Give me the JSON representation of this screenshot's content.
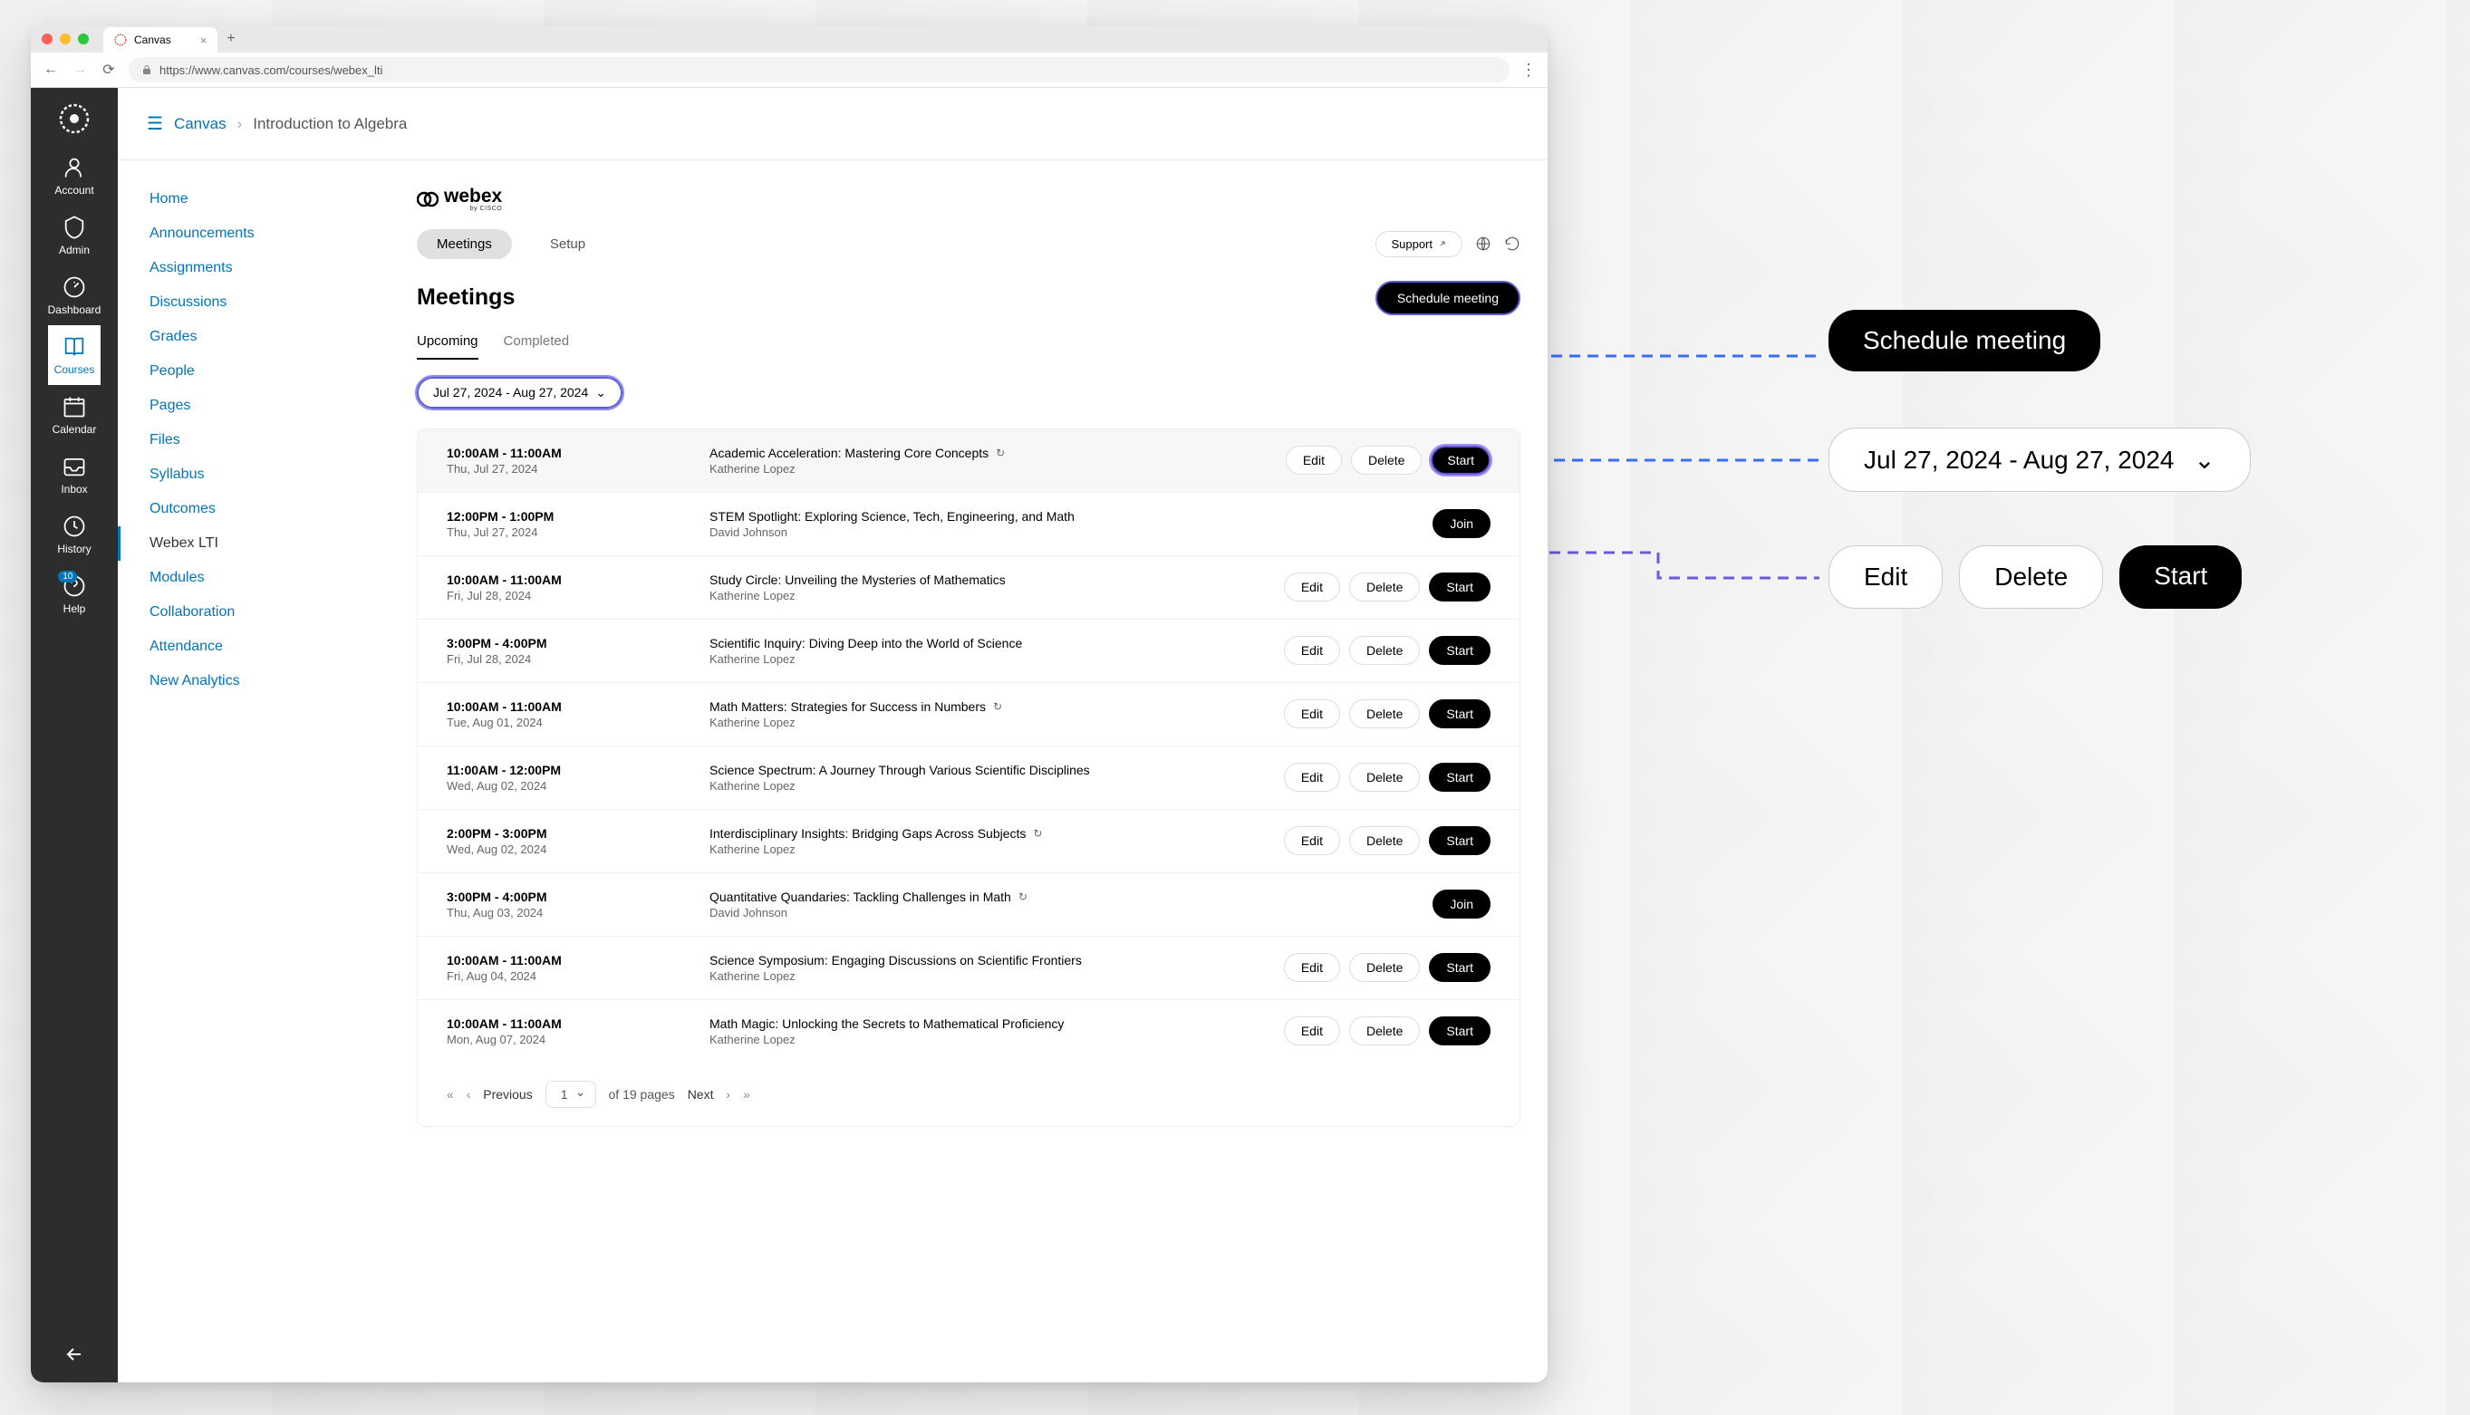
{
  "browser": {
    "tab_title": "Canvas",
    "url": "https://www.canvas.com/courses/webex_lti"
  },
  "global_nav": {
    "items": [
      {
        "label": "Account",
        "icon": "account"
      },
      {
        "label": "Admin",
        "icon": "admin"
      },
      {
        "label": "Dashboard",
        "icon": "dashboard"
      },
      {
        "label": "Courses",
        "icon": "courses",
        "active": true
      },
      {
        "label": "Calendar",
        "icon": "calendar"
      },
      {
        "label": "Inbox",
        "icon": "inbox"
      },
      {
        "label": "History",
        "icon": "history"
      },
      {
        "label": "Help",
        "icon": "help",
        "badge": "10"
      }
    ]
  },
  "breadcrumb": {
    "root": "Canvas",
    "current": "Introduction to Algebra"
  },
  "course_nav": {
    "items": [
      "Home",
      "Announcements",
      "Assignments",
      "Discussions",
      "Grades",
      "People",
      "Pages",
      "Files",
      "Syllabus",
      "Outcomes",
      "Webex LTI",
      "Modules",
      "Collaboration",
      "Attendance",
      "New Analytics"
    ],
    "active": "Webex LTI"
  },
  "webex": {
    "logo_text": "webex",
    "logo_sub": "by CISCO",
    "top_tabs": {
      "meetings": "Meetings",
      "setup": "Setup"
    },
    "support_label": "Support",
    "page_title": "Meetings",
    "schedule_button": "Schedule meeting",
    "sub_tabs": {
      "upcoming": "Upcoming",
      "completed": "Completed"
    },
    "date_filter": "Jul 27, 2024 - Aug 27, 2024",
    "buttons": {
      "edit": "Edit",
      "delete": "Delete",
      "start": "Start",
      "join": "Join"
    },
    "meetings": [
      {
        "time": "10:00AM - 11:00AM",
        "date": "Thu, Jul 27, 2024",
        "title": "Academic Acceleration: Mastering Core Concepts",
        "host": "Katherine Lopez",
        "recurring": true,
        "actions": [
          "edit",
          "delete",
          "start"
        ],
        "highlighted": true
      },
      {
        "time": "12:00PM - 1:00PM",
        "date": "Thu, Jul 27, 2024",
        "title": "STEM Spotlight: Exploring Science, Tech, Engineering, and Math",
        "host": "David Johnson",
        "recurring": false,
        "actions": [
          "join"
        ]
      },
      {
        "time": "10:00AM - 11:00AM",
        "date": "Fri, Jul 28, 2024",
        "title": "Study Circle: Unveiling the Mysteries of Mathematics",
        "host": "Katherine Lopez",
        "recurring": false,
        "actions": [
          "edit",
          "delete",
          "start"
        ]
      },
      {
        "time": "3:00PM - 4:00PM",
        "date": "Fri, Jul 28, 2024",
        "title": "Scientific Inquiry: Diving Deep into the World of Science",
        "host": "Katherine Lopez",
        "recurring": false,
        "actions": [
          "edit",
          "delete",
          "start"
        ]
      },
      {
        "time": "10:00AM - 11:00AM",
        "date": "Tue, Aug 01, 2024",
        "title": "Math Matters: Strategies for Success in Numbers",
        "host": "Katherine Lopez",
        "recurring": true,
        "actions": [
          "edit",
          "delete",
          "start"
        ]
      },
      {
        "time": "11:00AM - 12:00PM",
        "date": "Wed, Aug 02, 2024",
        "title": "Science Spectrum: A Journey Through Various Scientific Disciplines",
        "host": "Katherine Lopez",
        "recurring": false,
        "actions": [
          "edit",
          "delete",
          "start"
        ]
      },
      {
        "time": "2:00PM - 3:00PM",
        "date": "Wed, Aug 02, 2024",
        "title": "Interdisciplinary Insights: Bridging Gaps Across Subjects",
        "host": "Katherine Lopez",
        "recurring": true,
        "actions": [
          "edit",
          "delete",
          "start"
        ]
      },
      {
        "time": "3:00PM - 4:00PM",
        "date": "Thu, Aug 03, 2024",
        "title": "Quantitative Quandaries: Tackling Challenges in Math",
        "host": "David Johnson",
        "recurring": true,
        "actions": [
          "join"
        ]
      },
      {
        "time": "10:00AM - 11:00AM",
        "date": "Fri, Aug 04, 2024",
        "title": "Science Symposium: Engaging Discussions on Scientific Frontiers",
        "host": "Katherine Lopez",
        "recurring": false,
        "actions": [
          "edit",
          "delete",
          "start"
        ]
      },
      {
        "time": "10:00AM - 11:00AM",
        "date": "Mon, Aug 07, 2024",
        "title": "Math Magic: Unlocking the Secrets to Mathematical Proficiency",
        "host": "Katherine Lopez",
        "recurring": false,
        "actions": [
          "edit",
          "delete",
          "start"
        ]
      }
    ],
    "pagination": {
      "previous": "Previous",
      "next": "Next",
      "current_page": "1",
      "of_pages": "of 19 pages"
    }
  },
  "callouts": {
    "schedule": "Schedule meeting",
    "date": "Jul 27, 2024 - Aug 27, 2024",
    "edit": "Edit",
    "delete": "Delete",
    "start": "Start"
  },
  "annotation_style": {
    "dash_color": "#3b6cff",
    "dash_color_alt": "#8b5cf6",
    "callout_dark_bg": "#000000",
    "callout_light_bg": "#ffffff",
    "callout_border": "#cccccc",
    "callout_text_light": "#000000",
    "callout_text_dark": "#ffffff"
  }
}
